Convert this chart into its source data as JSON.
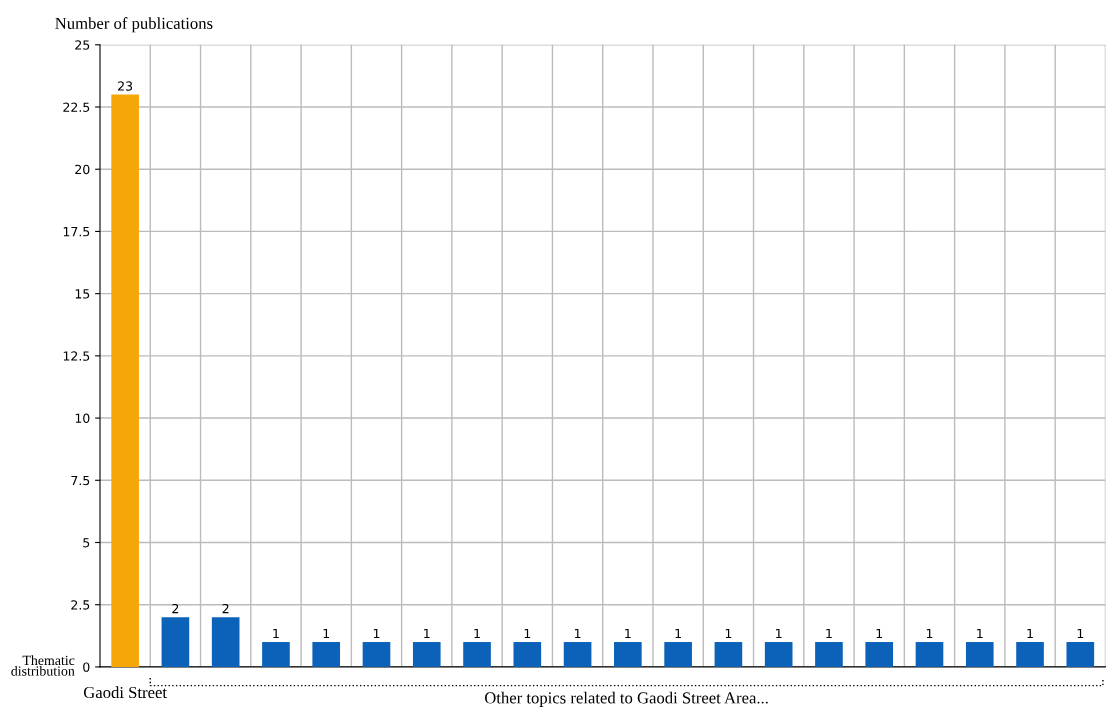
{
  "chart_data": {
    "type": "bar",
    "ylabel": "Number of publications",
    "xlabel": "Thematic distribution",
    "categories": [
      "Gaodi Street",
      null,
      null,
      null,
      null,
      null,
      null,
      null,
      null,
      null,
      null,
      null,
      null,
      null,
      null,
      null,
      null,
      null,
      null,
      null
    ],
    "values": [
      23,
      2,
      2,
      1,
      1,
      1,
      1,
      1,
      1,
      1,
      1,
      1,
      1,
      1,
      1,
      1,
      1,
      1,
      1,
      1
    ],
    "colors": [
      "#f5a70a",
      "#0b62b8",
      "#0b62b8",
      "#0b62b8",
      "#0b62b8",
      "#0b62b8",
      "#0b62b8",
      "#0b62b8",
      "#0b62b8",
      "#0b62b8",
      "#0b62b8",
      "#0b62b8",
      "#0b62b8",
      "#0b62b8",
      "#0b62b8",
      "#0b62b8",
      "#0b62b8",
      "#0b62b8",
      "#0b62b8",
      "#0b62b8"
    ],
    "ylim": [
      0,
      25
    ],
    "yticks": [
      0,
      2.5,
      5,
      7.5,
      10,
      12.5,
      15,
      17.5,
      20,
      22.5,
      25
    ],
    "grid": true,
    "data_labels": true,
    "annotations": [
      "Other topics related to Gaodi Street Area..."
    ]
  }
}
